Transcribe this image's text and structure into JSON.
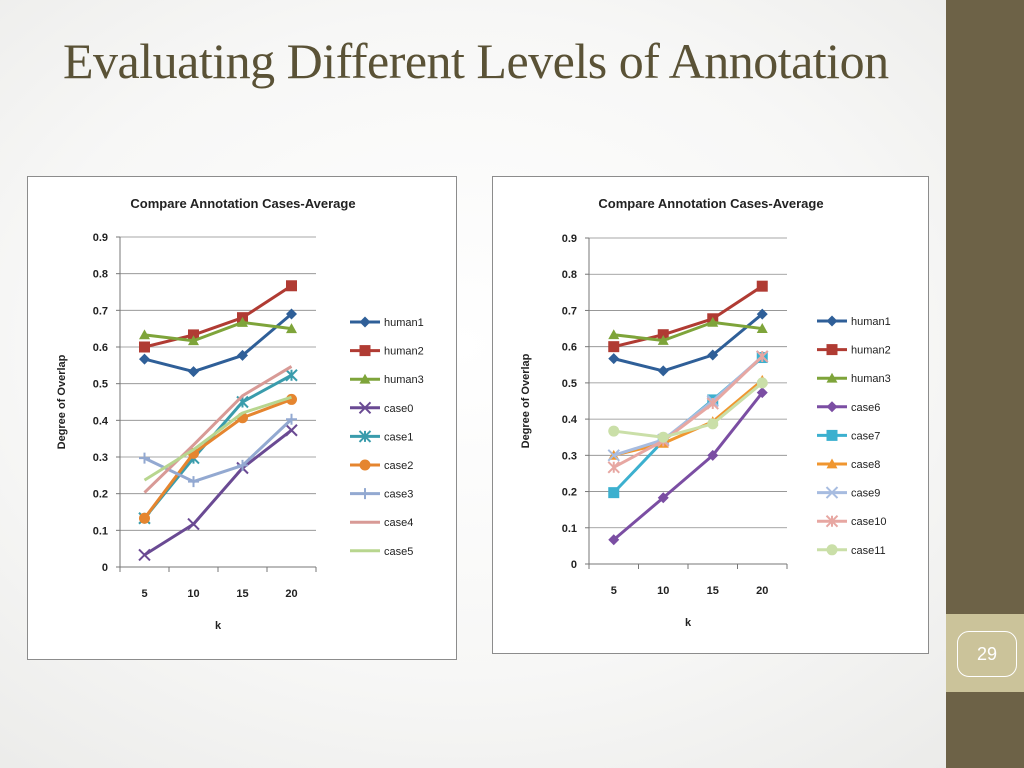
{
  "slide": {
    "title": "Evaluating Different Levels of Annotation",
    "page_number": "29"
  },
  "colors": {
    "title": "#5a5236",
    "sidebar": "#6d6247",
    "page_box": "#cbc39a"
  },
  "chart_data": [
    {
      "type": "line",
      "title": "Compare Annotation Cases-Average",
      "xlabel": "k",
      "ylabel": "Degree of Overlap",
      "categories": [
        "5",
        "10",
        "15",
        "20"
      ],
      "ylim": [
        0,
        0.9
      ],
      "yticks": [
        "0",
        "0.1",
        "0.2",
        "0.3",
        "0.4",
        "0.5",
        "0.6",
        "0.7",
        "0.8",
        "0.9"
      ],
      "grid": "horizontal",
      "legend": "right",
      "series": [
        {
          "name": "human1",
          "values": [
            0.567,
            0.533,
            0.577,
            0.69
          ],
          "color": "#2f5f98",
          "marker": "diamond"
        },
        {
          "name": "human2",
          "values": [
            0.6,
            0.633,
            0.68,
            0.767
          ],
          "color": "#b03b33",
          "marker": "square"
        },
        {
          "name": "human3",
          "values": [
            0.633,
            0.617,
            0.667,
            0.65
          ],
          "color": "#7ea43a",
          "marker": "triangle"
        },
        {
          "name": "case0",
          "values": [
            0.033,
            0.117,
            0.27,
            0.373
          ],
          "color": "#6a4a93",
          "marker": "x"
        },
        {
          "name": "case1",
          "values": [
            0.133,
            0.297,
            0.45,
            0.523
          ],
          "color": "#3a9cac",
          "marker": "star"
        },
        {
          "name": "case2",
          "values": [
            0.133,
            0.31,
            0.407,
            0.457
          ],
          "color": "#e5852f",
          "marker": "circle"
        },
        {
          "name": "case3",
          "values": [
            0.297,
            0.233,
            0.277,
            0.403
          ],
          "color": "#93a9d1",
          "marker": "plus"
        },
        {
          "name": "case4",
          "values": [
            0.203,
            0.333,
            0.467,
            0.547
          ],
          "color": "#d89a96",
          "marker": "none"
        },
        {
          "name": "case5",
          "values": [
            0.237,
            0.32,
            0.42,
            0.463
          ],
          "color": "#b8d68f",
          "marker": "none"
        }
      ]
    },
    {
      "type": "line",
      "title": "Compare Annotation Cases-Average",
      "xlabel": "k",
      "ylabel": "Degree of Overlap",
      "categories": [
        "5",
        "10",
        "15",
        "20"
      ],
      "ylim": [
        0,
        0.9
      ],
      "yticks": [
        "0",
        "0.1",
        "0.2",
        "0.3",
        "0.4",
        "0.5",
        "0.6",
        "0.7",
        "0.8",
        "0.9"
      ],
      "grid": "horizontal",
      "legend": "right",
      "series": [
        {
          "name": "human1",
          "values": [
            0.567,
            0.533,
            0.577,
            0.69
          ],
          "color": "#2f5f98",
          "marker": "diamond"
        },
        {
          "name": "human2",
          "values": [
            0.6,
            0.633,
            0.677,
            0.767
          ],
          "color": "#b03b33",
          "marker": "square"
        },
        {
          "name": "human3",
          "values": [
            0.633,
            0.617,
            0.667,
            0.65
          ],
          "color": "#7ea43a",
          "marker": "triangle"
        },
        {
          "name": "case6",
          "values": [
            0.067,
            0.183,
            0.3,
            0.473
          ],
          "color": "#7b4ea3",
          "marker": "diamond"
        },
        {
          "name": "case7",
          "values": [
            0.197,
            0.34,
            0.453,
            0.57
          ],
          "color": "#3cb0cf",
          "marker": "square"
        },
        {
          "name": "case8",
          "values": [
            0.3,
            0.333,
            0.393,
            0.507
          ],
          "color": "#f0962f",
          "marker": "triangle"
        },
        {
          "name": "case9",
          "values": [
            0.3,
            0.343,
            0.45,
            0.573
          ],
          "color": "#a7bce0",
          "marker": "x"
        },
        {
          "name": "case10",
          "values": [
            0.267,
            0.34,
            0.443,
            0.573
          ],
          "color": "#e7a7a2",
          "marker": "star"
        },
        {
          "name": "case11",
          "values": [
            0.367,
            0.35,
            0.387,
            0.5
          ],
          "color": "#cadfa8",
          "marker": "circle"
        }
      ]
    }
  ]
}
